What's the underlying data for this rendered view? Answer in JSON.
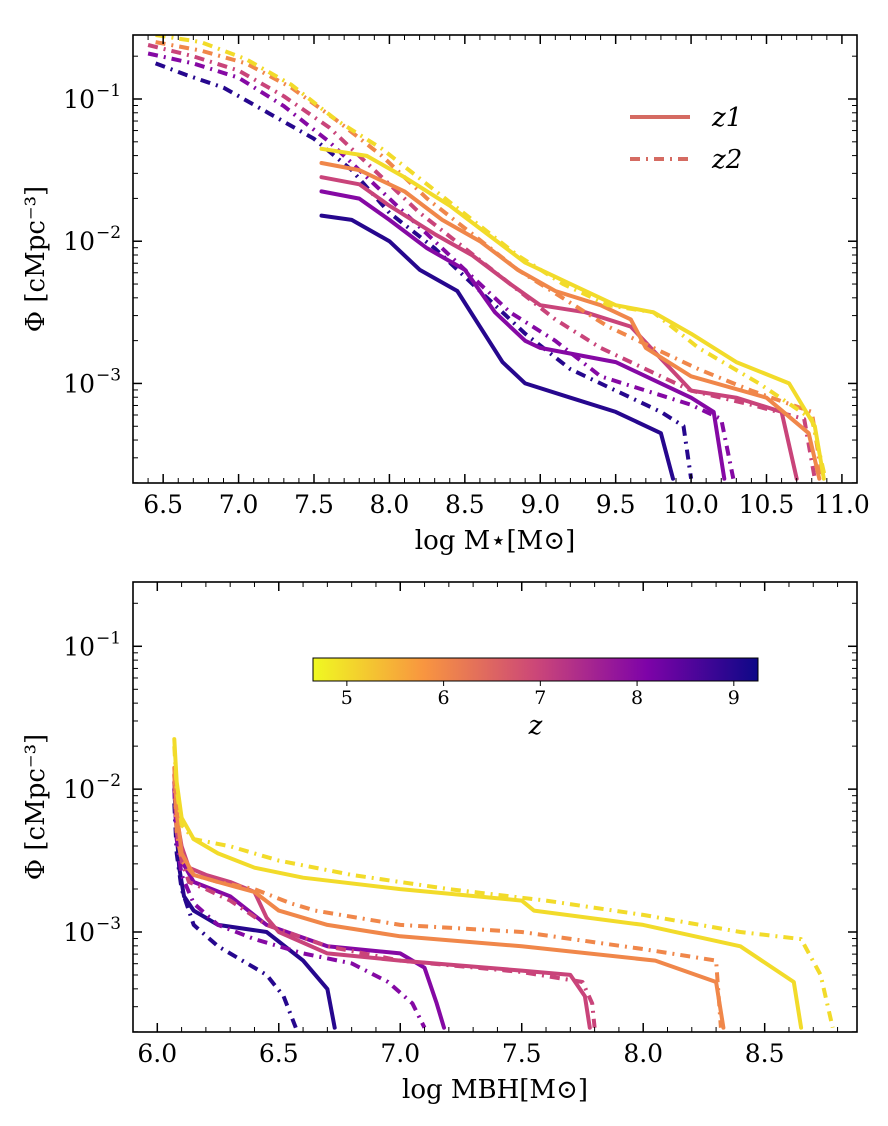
{
  "chart_data": [
    {
      "type": "line",
      "title": "",
      "xlabel": "log M⋆[M⊙]",
      "ylabel": "Φ [cMpc⁻³]",
      "x_tick_labels": [
        "6.5",
        "7.0",
        "7.5",
        "8.0",
        "8.5",
        "9.0",
        "9.5",
        "10.0",
        "10.5",
        "11.0"
      ],
      "y_tick_labels": [
        {
          "base": "10",
          "exp": "−1"
        },
        {
          "base": "10",
          "exp": "−2"
        },
        {
          "base": "10",
          "exp": "−3"
        }
      ],
      "xlim": [
        6.3,
        11.1
      ],
      "ylim_log10": [
        -3.7,
        -0.55
      ],
      "yscale": "log",
      "legend": {
        "location": "top-right",
        "entries": [
          {
            "label": "z1",
            "style": "solid"
          },
          {
            "label": "z2",
            "style": "dash-dot"
          }
        ]
      },
      "series": [
        {
          "name": "z1",
          "z": 9.0,
          "x": [
            7.55,
            7.75,
            8.0,
            8.2,
            8.45,
            8.6,
            8.75,
            8.9,
            9.2,
            9.5,
            9.8,
            9.88
          ],
          "log_phi": [
            -1.82,
            -1.85,
            -2.0,
            -2.2,
            -2.35,
            -2.6,
            -2.85,
            -3.0,
            -3.1,
            -3.2,
            -3.35,
            -3.67
          ]
        },
        {
          "name": "z2",
          "z": 9.0,
          "x": [
            6.45,
            6.65,
            6.9,
            7.2,
            7.5,
            7.75,
            8.0,
            8.3,
            8.6,
            8.9,
            9.2,
            9.5,
            9.8,
            9.95,
            10.0
          ],
          "log_phi": [
            -0.75,
            -0.83,
            -0.92,
            -1.1,
            -1.28,
            -1.5,
            -1.8,
            -2.05,
            -2.35,
            -2.65,
            -2.9,
            -3.05,
            -3.2,
            -3.3,
            -3.67
          ]
        },
        {
          "name": "z1",
          "z": 8.0,
          "x": [
            7.55,
            7.8,
            8.0,
            8.25,
            8.5,
            8.7,
            8.9,
            9.0,
            9.5,
            10.0,
            10.15,
            10.22
          ],
          "log_phi": [
            -1.65,
            -1.7,
            -1.85,
            -2.05,
            -2.2,
            -2.5,
            -2.7,
            -2.75,
            -2.85,
            -3.1,
            -3.2,
            -3.67
          ]
        },
        {
          "name": "z2",
          "z": 8.0,
          "x": [
            6.4,
            6.7,
            7.0,
            7.3,
            7.6,
            7.9,
            8.2,
            8.5,
            8.8,
            9.1,
            9.4,
            9.7,
            10.0,
            10.2,
            10.28
          ],
          "log_phi": [
            -0.68,
            -0.75,
            -0.85,
            -1.05,
            -1.3,
            -1.6,
            -1.9,
            -2.2,
            -2.5,
            -2.7,
            -2.95,
            -3.05,
            -3.15,
            -3.25,
            -3.67
          ]
        },
        {
          "name": "z1",
          "z": 7.0,
          "x": [
            7.55,
            7.8,
            8.0,
            8.3,
            8.55,
            8.8,
            9.0,
            9.3,
            9.6,
            10.0,
            10.3,
            10.6,
            10.7
          ],
          "log_phi": [
            -1.55,
            -1.6,
            -1.75,
            -1.95,
            -2.1,
            -2.3,
            -2.45,
            -2.5,
            -2.6,
            -3.05,
            -3.1,
            -3.2,
            -3.67
          ]
        },
        {
          "name": "z2",
          "z": 7.0,
          "x": [
            6.4,
            6.7,
            7.0,
            7.3,
            7.6,
            7.9,
            8.2,
            8.5,
            8.8,
            9.1,
            9.4,
            9.7,
            10.0,
            10.4,
            10.75,
            10.82
          ],
          "log_phi": [
            -0.62,
            -0.7,
            -0.8,
            -0.98,
            -1.2,
            -1.5,
            -1.8,
            -2.05,
            -2.3,
            -2.55,
            -2.75,
            -2.9,
            -3.05,
            -3.15,
            -3.25,
            -3.67
          ]
        },
        {
          "name": "z1",
          "z": 6.0,
          "x": [
            7.55,
            7.8,
            8.1,
            8.35,
            8.6,
            8.85,
            9.1,
            9.4,
            9.6,
            9.7,
            10.0,
            10.5,
            10.78,
            10.85
          ],
          "log_phi": [
            -1.45,
            -1.5,
            -1.65,
            -1.85,
            -2.0,
            -2.2,
            -2.35,
            -2.45,
            -2.55,
            -2.75,
            -2.95,
            -3.1,
            -3.35,
            -3.67
          ]
        },
        {
          "name": "z2",
          "z": 6.0,
          "x": [
            6.45,
            6.75,
            7.05,
            7.35,
            7.65,
            7.95,
            8.25,
            8.55,
            8.85,
            9.15,
            9.45,
            9.75,
            10.05,
            10.4,
            10.8,
            10.87
          ],
          "log_phi": [
            -0.6,
            -0.66,
            -0.75,
            -0.92,
            -1.15,
            -1.4,
            -1.7,
            -1.95,
            -2.2,
            -2.4,
            -2.6,
            -2.75,
            -2.9,
            -3.05,
            -3.2,
            -3.67
          ]
        },
        {
          "name": "z1",
          "z": 5.0,
          "x": [
            7.55,
            7.85,
            8.1,
            8.4,
            8.65,
            8.9,
            9.2,
            9.5,
            9.75,
            10.0,
            10.3,
            10.65,
            10.82,
            10.88
          ],
          "log_phi": [
            -1.35,
            -1.4,
            -1.55,
            -1.75,
            -1.95,
            -2.15,
            -2.3,
            -2.45,
            -2.5,
            -2.65,
            -2.85,
            -3.0,
            -3.3,
            -3.67
          ]
        },
        {
          "name": "z2",
          "z": 5.0,
          "x": [
            6.45,
            6.75,
            7.05,
            7.35,
            7.65,
            7.95,
            8.25,
            8.55,
            8.85,
            9.15,
            9.45,
            9.75,
            10.05,
            10.45,
            10.8,
            10.89
          ],
          "log_phi": [
            -0.55,
            -0.6,
            -0.72,
            -0.9,
            -1.15,
            -1.35,
            -1.6,
            -1.85,
            -2.1,
            -2.3,
            -2.45,
            -2.5,
            -2.75,
            -3.0,
            -3.25,
            -3.67
          ]
        }
      ]
    },
    {
      "type": "line",
      "title": "",
      "xlabel": "log MBH[M⊙]",
      "ylabel": "Φ [cMpc⁻³]",
      "x_tick_labels": [
        "6.0",
        "6.5",
        "7.0",
        "7.5",
        "8.0",
        "8.5"
      ],
      "y_tick_labels": [
        {
          "base": "10",
          "exp": "−1"
        },
        {
          "base": "10",
          "exp": "−2"
        },
        {
          "base": "10",
          "exp": "−3"
        }
      ],
      "xlim": [
        5.9,
        8.88
      ],
      "ylim_log10": [
        -3.7,
        -0.55
      ],
      "yscale": "log",
      "colorbar": {
        "label": "z",
        "ticks": [
          "5",
          "6",
          "7",
          "8",
          "9"
        ],
        "range": [
          4.65,
          9.25
        ],
        "orientation": "horizontal",
        "location": "upper-center"
      },
      "series": [
        {
          "name": "z1",
          "z": 9.0,
          "x": [
            6.07,
            6.08,
            6.09,
            6.11,
            6.15,
            6.25,
            6.45,
            6.6,
            6.7,
            6.73
          ],
          "log_phi": [
            -2.0,
            -2.3,
            -2.55,
            -2.75,
            -2.85,
            -2.95,
            -3.0,
            -3.2,
            -3.4,
            -3.67
          ]
        },
        {
          "name": "z2",
          "z": 9.0,
          "x": [
            6.07,
            6.08,
            6.1,
            6.15,
            6.25,
            6.35,
            6.45,
            6.52,
            6.57
          ],
          "log_phi": [
            -2.1,
            -2.45,
            -2.7,
            -2.95,
            -3.1,
            -3.2,
            -3.3,
            -3.45,
            -3.67
          ]
        },
        {
          "name": "z1",
          "z": 8.0,
          "x": [
            6.07,
            6.08,
            6.1,
            6.15,
            6.3,
            6.45,
            6.7,
            7.0,
            7.1,
            7.15,
            7.18
          ],
          "log_phi": [
            -1.95,
            -2.25,
            -2.5,
            -2.65,
            -2.75,
            -2.95,
            -3.1,
            -3.15,
            -3.25,
            -3.5,
            -3.67
          ]
        },
        {
          "name": "z2",
          "z": 8.0,
          "x": [
            6.07,
            6.08,
            6.1,
            6.15,
            6.25,
            6.4,
            6.6,
            6.8,
            6.95,
            7.05,
            7.1
          ],
          "log_phi": [
            -2.0,
            -2.35,
            -2.6,
            -2.8,
            -2.95,
            -3.05,
            -3.15,
            -3.22,
            -3.35,
            -3.5,
            -3.67
          ]
        },
        {
          "name": "z1",
          "z": 7.0,
          "x": [
            6.07,
            6.08,
            6.1,
            6.13,
            6.2,
            6.3,
            6.4,
            6.45,
            6.5,
            6.7,
            7.0,
            7.5,
            7.7,
            7.76,
            7.78
          ],
          "log_phi": [
            -1.9,
            -2.2,
            -2.4,
            -2.55,
            -2.6,
            -2.65,
            -2.72,
            -2.9,
            -3.0,
            -3.15,
            -3.2,
            -3.27,
            -3.3,
            -3.45,
            -3.67
          ]
        },
        {
          "name": "z2",
          "z": 7.0,
          "x": [
            6.07,
            6.08,
            6.1,
            6.13,
            6.2,
            6.3,
            6.45,
            6.7,
            7.0,
            7.5,
            7.75,
            7.79,
            7.8
          ],
          "log_phi": [
            -1.95,
            -2.3,
            -2.5,
            -2.65,
            -2.7,
            -2.78,
            -2.95,
            -3.1,
            -3.2,
            -3.28,
            -3.35,
            -3.5,
            -3.67
          ]
        },
        {
          "name": "z1",
          "z": 6.0,
          "x": [
            6.07,
            6.08,
            6.1,
            6.15,
            6.25,
            6.4,
            6.5,
            6.7,
            7.0,
            7.5,
            8.05,
            8.3,
            8.33
          ],
          "log_phi": [
            -1.85,
            -2.15,
            -2.45,
            -2.6,
            -2.65,
            -2.72,
            -2.85,
            -2.95,
            -3.03,
            -3.1,
            -3.2,
            -3.35,
            -3.67
          ]
        },
        {
          "name": "z2",
          "z": 6.0,
          "x": [
            6.07,
            6.08,
            6.1,
            6.15,
            6.25,
            6.4,
            6.55,
            6.65,
            7.0,
            7.5,
            8.0,
            8.3,
            8.32
          ],
          "log_phi": [
            -1.9,
            -2.3,
            -2.5,
            -2.6,
            -2.65,
            -2.7,
            -2.8,
            -2.85,
            -2.95,
            -3.0,
            -3.12,
            -3.2,
            -3.67
          ]
        },
        {
          "name": "z1",
          "z": 5.0,
          "x": [
            6.07,
            6.08,
            6.1,
            6.15,
            6.25,
            6.4,
            6.6,
            7.0,
            7.5,
            7.55,
            8.0,
            8.4,
            8.62,
            8.65
          ],
          "log_phi": [
            -1.65,
            -1.95,
            -2.2,
            -2.35,
            -2.45,
            -2.55,
            -2.62,
            -2.7,
            -2.78,
            -2.85,
            -2.95,
            -3.1,
            -3.35,
            -3.67
          ]
        },
        {
          "name": "z2",
          "z": 5.0,
          "x": [
            6.07,
            6.08,
            6.1,
            6.15,
            6.3,
            6.5,
            6.8,
            7.2,
            7.6,
            8.0,
            8.4,
            8.65,
            8.73,
            8.78
          ],
          "log_phi": [
            -1.7,
            -2.0,
            -2.25,
            -2.35,
            -2.4,
            -2.5,
            -2.6,
            -2.7,
            -2.78,
            -2.88,
            -3.0,
            -3.05,
            -3.3,
            -3.67
          ]
        }
      ]
    }
  ]
}
